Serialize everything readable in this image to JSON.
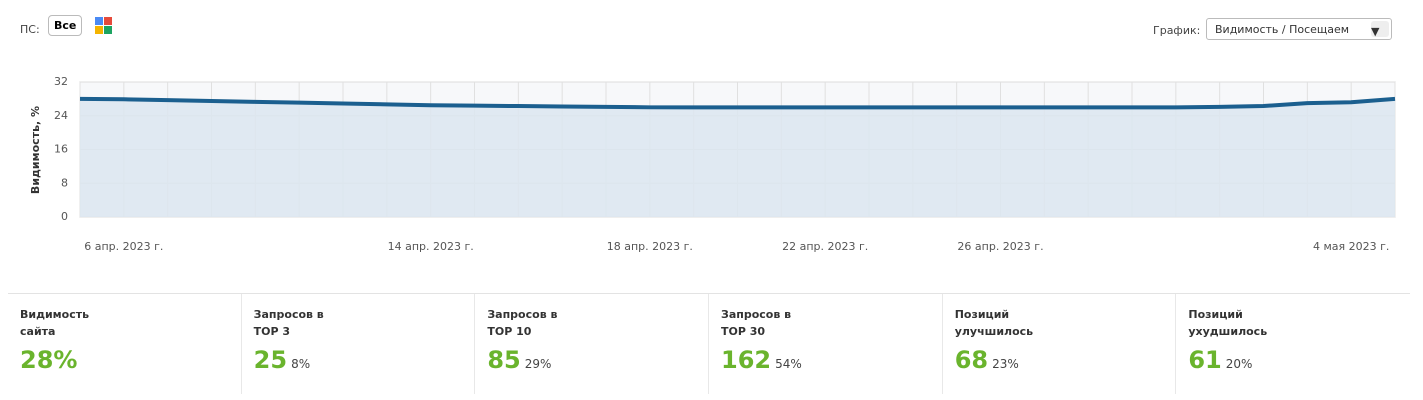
{
  "toolbar": {
    "ps_label": "ПС:",
    "ps_button": "Все",
    "graph_label": "График:",
    "graph_select": "Видимость / Посещаем"
  },
  "chart_data": {
    "type": "line",
    "y_label": "Видимость, %",
    "categories": [
      null,
      "6 апр. 2023 г.",
      null,
      null,
      null,
      null,
      null,
      null,
      "14 апр. 2023 г.",
      null,
      null,
      null,
      null,
      "18 апр. 2023 г.",
      null,
      null,
      null,
      "22 апр. 2023 г.",
      null,
      null,
      null,
      "26 апр. 2023 г.",
      null,
      null,
      null,
      null,
      null,
      null,
      null,
      "4 мая 2023 г.",
      null
    ],
    "series": [
      {
        "name": "Видимость",
        "color": "#1b5f8f",
        "values": [
          28,
          27.9,
          27.7,
          27.5,
          27.3,
          27.1,
          26.9,
          26.7,
          26.5,
          26.4,
          26.3,
          26.2,
          26.1,
          26,
          26,
          26,
          26,
          26,
          26,
          26,
          26,
          26,
          26,
          26,
          26,
          26,
          26.1,
          26.3,
          27,
          27.2,
          28
        ]
      }
    ],
    "ylim": [
      0,
      32
    ],
    "yticks": [
      0,
      8,
      16,
      24,
      32
    ],
    "grid": true
  },
  "stats": [
    {
      "title": [
        "Видимость",
        "сайта"
      ],
      "value": "28%",
      "percent": null
    },
    {
      "title": [
        "Запросов в",
        "TOP 3"
      ],
      "value": "25",
      "percent": "8%"
    },
    {
      "title": [
        "Запросов в",
        "TOP 10"
      ],
      "value": "85",
      "percent": "29%"
    },
    {
      "title": [
        "Запросов в",
        "TOP 30"
      ],
      "value": "162",
      "percent": "54%"
    },
    {
      "title": [
        "Позиций",
        "улучшилось"
      ],
      "value": "68",
      "percent": "23%"
    },
    {
      "title": [
        "Позиций",
        "ухудшилось"
      ],
      "value": "61",
      "percent": "20%"
    }
  ]
}
